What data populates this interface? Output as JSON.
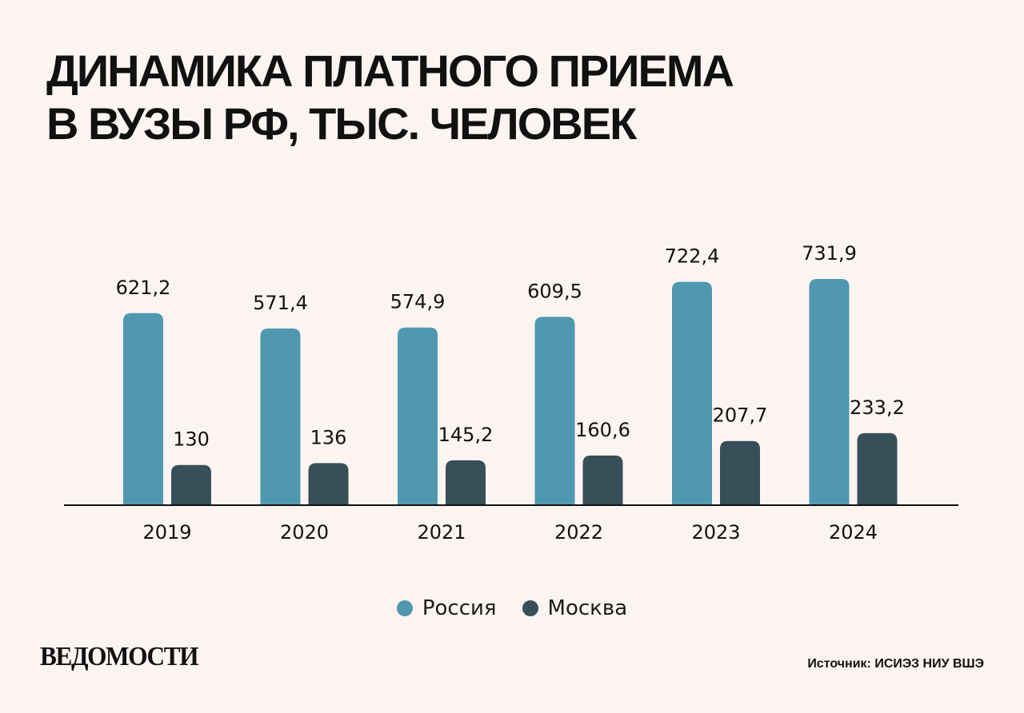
{
  "title": {
    "line1": "Динамика платного приема",
    "line2": "в вузы РФ, тыс. человек"
  },
  "chart_data": {
    "type": "bar",
    "categories": [
      "2019",
      "2020",
      "2021",
      "2022",
      "2023",
      "2024"
    ],
    "series": [
      {
        "name": "Россия",
        "values": [
          621.2,
          571.4,
          574.9,
          609.5,
          722.4,
          731.9
        ],
        "labels": [
          "621,2",
          "571,4",
          "574,9",
          "609,5",
          "722,4",
          "731,9"
        ],
        "color": "#4f98b0"
      },
      {
        "name": "Москва",
        "values": [
          130,
          136,
          145.2,
          160.6,
          207.7,
          233.2
        ],
        "labels": [
          "130",
          "136",
          "145,2",
          "160,6",
          "207,7",
          "233,2"
        ],
        "color": "#374f59"
      }
    ],
    "ylim": [
      0,
      750
    ],
    "grid": false,
    "legend": "bottom-center"
  },
  "footer": {
    "logo": "ВЕДОМОСТИ",
    "source": "Источник: ИСИЭЗ НИУ ВШЭ"
  }
}
